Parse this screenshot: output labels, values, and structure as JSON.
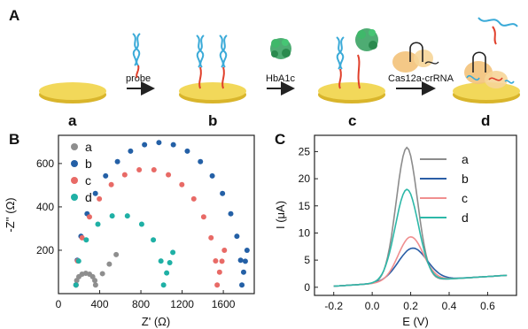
{
  "panel_labels": {
    "A": "A",
    "B": "B",
    "C": "C"
  },
  "schematic": {
    "steps": [
      "a",
      "b",
      "c",
      "d"
    ],
    "arrows": [
      "probe",
      "HbA1c",
      "Cas12a-crRNA"
    ],
    "colors": {
      "electrode": "#f2d85a",
      "electrode_edge": "#d9b52b",
      "dna_blue": "#3aaad8",
      "dna_red": "#e0402c",
      "protein": "#2f9e5a",
      "cas": "#f3c27a"
    }
  },
  "chart_data": [
    {
      "panel": "B",
      "type": "scatter",
      "xlabel": "Z' (Ω)",
      "ylabel": "-Z'' (Ω)",
      "xlim": [
        0,
        1900
      ],
      "ylim": [
        0,
        730
      ],
      "xticks": [
        0,
        400,
        800,
        1200,
        1600
      ],
      "yticks": [
        200,
        400,
        600
      ],
      "grid": false,
      "legend_position": "top-left",
      "series": [
        {
          "name": "a",
          "color": "#8e8e8e",
          "kind": "semicircle+tail",
          "x_start": 170,
          "x_end": 360,
          "radius_y": 55,
          "tail_end": [
            560,
            180
          ]
        },
        {
          "name": "b",
          "color": "#2460a6",
          "kind": "semicircle+tail",
          "x_start": 170,
          "x_end": 1780,
          "radius_y": 670,
          "tail_end": [
            1830,
            200
          ]
        },
        {
          "name": "c",
          "color": "#e86a66",
          "kind": "semicircle+tail",
          "x_start": 170,
          "x_end": 1540,
          "radius_y": 545,
          "tail_end": [
            1610,
            200
          ]
        },
        {
          "name": "d",
          "color": "#1fb0a5",
          "kind": "semicircle+tail",
          "x_start": 170,
          "x_end": 1020,
          "radius_y": 330,
          "tail_end": [
            1110,
            190
          ]
        }
      ]
    },
    {
      "panel": "C",
      "type": "line",
      "xlabel": "E (V)",
      "ylabel": "I (μA)",
      "xlim": [
        -0.3,
        0.75
      ],
      "ylim": [
        -1.5,
        28
      ],
      "xticks": [
        -0.2,
        0.0,
        0.2,
        0.4,
        0.6
      ],
      "xtick_labels": [
        "-0.2",
        "0.0",
        "0.2",
        "0.4",
        "0.6"
      ],
      "yticks": [
        0,
        5,
        10,
        15,
        20,
        25
      ],
      "grid": false,
      "legend_position": "top-right",
      "series": [
        {
          "name": "a",
          "color": "#8c8c8c",
          "peak_x": 0.18,
          "peak_y": 26.0,
          "width": 0.055
        },
        {
          "name": "b",
          "color": "#2a5ea6",
          "peak_x": 0.21,
          "peak_y": 7.4,
          "width": 0.075
        },
        {
          "name": "c",
          "color": "#f08f8f",
          "peak_x": 0.2,
          "peak_y": 9.5,
          "width": 0.065
        },
        {
          "name": "d",
          "color": "#2db8a8",
          "peak_x": 0.18,
          "peak_y": 18.3,
          "width": 0.06
        }
      ]
    }
  ]
}
